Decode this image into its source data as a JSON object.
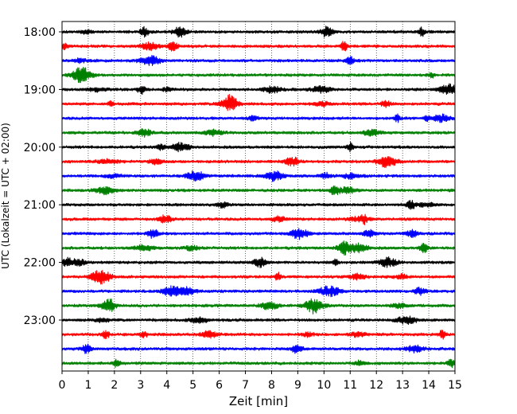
{
  "chart_data": {
    "type": "line",
    "title": "",
    "xlabel": "Zeit  [min]",
    "ylabel": "UTC (Lokalzeit = UTC + 02:00)",
    "xlim": [
      0,
      15
    ],
    "x_ticks": [
      0,
      1,
      2,
      3,
      4,
      5,
      6,
      7,
      8,
      9,
      10,
      11,
      12,
      13,
      14,
      15
    ],
    "y_tick_labels": [
      "18:00",
      "19:00",
      "20:00",
      "21:00",
      "22:00",
      "23:00"
    ],
    "trace_interval_minutes": 15,
    "grid": "vertical dotted",
    "color_cycle": [
      "#000000",
      "#ff0000",
      "#0000ff",
      "#008000"
    ],
    "traces": [
      {
        "start": "18:00",
        "color": "#000000"
      },
      {
        "start": "18:15",
        "color": "#ff0000"
      },
      {
        "start": "18:30",
        "color": "#0000ff"
      },
      {
        "start": "18:45",
        "color": "#008000"
      },
      {
        "start": "19:00",
        "color": "#000000"
      },
      {
        "start": "19:15",
        "color": "#ff0000"
      },
      {
        "start": "19:30",
        "color": "#0000ff"
      },
      {
        "start": "19:45",
        "color": "#008000"
      },
      {
        "start": "20:00",
        "color": "#000000"
      },
      {
        "start": "20:15",
        "color": "#ff0000"
      },
      {
        "start": "20:30",
        "color": "#0000ff"
      },
      {
        "start": "20:45",
        "color": "#008000"
      },
      {
        "start": "21:00",
        "color": "#000000"
      },
      {
        "start": "21:15",
        "color": "#ff0000"
      },
      {
        "start": "21:30",
        "color": "#0000ff"
      },
      {
        "start": "21:45",
        "color": "#008000"
      },
      {
        "start": "22:00",
        "color": "#000000"
      },
      {
        "start": "22:15",
        "color": "#ff0000"
      },
      {
        "start": "22:30",
        "color": "#0000ff"
      },
      {
        "start": "22:45",
        "color": "#008000"
      },
      {
        "start": "23:00",
        "color": "#000000"
      },
      {
        "start": "23:15",
        "color": "#ff0000"
      },
      {
        "start": "23:30",
        "color": "#0000ff"
      },
      {
        "start": "23:45",
        "color": "#008000"
      }
    ]
  }
}
